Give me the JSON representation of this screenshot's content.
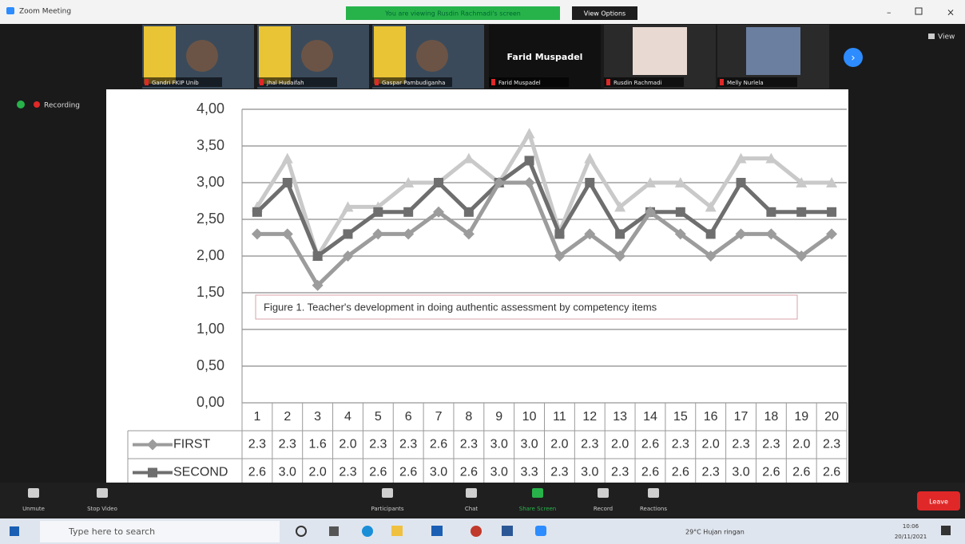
{
  "window": {
    "title": "Zoom Meeting",
    "banner": "You are viewing Rusdin Rachmadi's screen",
    "view_options": "View Options",
    "view": "View",
    "recording": "Recording"
  },
  "participants": [
    {
      "name": "Gandri FKIP Unib"
    },
    {
      "name": "Jhal Hudaifah"
    },
    {
      "name": "Gaspar Pambudiganha"
    },
    {
      "name": "Farid Muspadel"
    },
    {
      "name": "Rusdin Rachmadi"
    },
    {
      "name": "Melly Nurlela"
    }
  ],
  "featured_name": "Farid Muspadel",
  "chart_data": {
    "type": "line",
    "annotation": "Figure 1. Teacher's development in doing authentic assessment by competency items",
    "categories": [
      "1",
      "2",
      "3",
      "4",
      "5",
      "6",
      "7",
      "8",
      "9",
      "10",
      "11",
      "12",
      "13",
      "14",
      "15",
      "16",
      "17",
      "18",
      "19",
      "20"
    ],
    "series": [
      {
        "name": "FIRST",
        "color": "#9c9c9c",
        "marker": "diamond",
        "values": [
          2.3,
          2.3,
          1.6,
          2.0,
          2.3,
          2.3,
          2.6,
          2.3,
          3.0,
          3.0,
          2.0,
          2.3,
          2.0,
          2.6,
          2.3,
          2.0,
          2.3,
          2.3,
          2.0,
          2.3
        ],
        "value_labels": [
          "2.3",
          "2.3",
          "1.6",
          "2.0",
          "2.3",
          "2.3",
          "2.6",
          "2.3",
          "3.0",
          "3.0",
          "2.0",
          "2.3",
          "2.0",
          "2.6",
          "2.3",
          "2.0",
          "2.3",
          "2.3",
          "2.0",
          "2.3"
        ]
      },
      {
        "name": "SECOND",
        "color": "#6e6e6e",
        "marker": "square",
        "values": [
          2.6,
          3.0,
          2.0,
          2.3,
          2.6,
          2.6,
          3.0,
          2.6,
          3.0,
          3.3,
          2.3,
          3.0,
          2.3,
          2.6,
          2.6,
          2.3,
          3.0,
          2.6,
          2.6,
          2.6
        ],
        "value_labels": [
          "2.6",
          "3.0",
          "2.0",
          "2.3",
          "2.6",
          "2.6",
          "3.0",
          "2.6",
          "3.0",
          "3.3",
          "2.3",
          "3.0",
          "2.3",
          "2.6",
          "2.6",
          "2.3",
          "3.0",
          "2.6",
          "2.6",
          "2.6"
        ]
      },
      {
        "color": "#c9c9c9",
        "marker": "triangle",
        "values": [
          2.67,
          3.33,
          2.0,
          2.67,
          2.67,
          3.0,
          3.0,
          3.33,
          3.0,
          3.67,
          2.33,
          3.33,
          2.67,
          3.0,
          3.0,
          2.67,
          3.33,
          3.33,
          3.0,
          3.0
        ]
      }
    ],
    "ylim": [
      0,
      4
    ],
    "yticks": [
      {
        "value": 0,
        "label": "0,00"
      },
      {
        "value": 0.5,
        "label": "0,50"
      },
      {
        "value": 1,
        "label": "1,00"
      },
      {
        "value": 1.5,
        "label": "1,50"
      },
      {
        "value": 2,
        "label": "2,00"
      },
      {
        "value": 2.5,
        "label": "2,50"
      },
      {
        "value": 3,
        "label": "3,00"
      },
      {
        "value": 3.5,
        "label": "3,50"
      },
      {
        "value": 4,
        "label": "4,00"
      }
    ],
    "grid": true
  },
  "toolbar": [
    "Unmute",
    "Stop Video",
    "Participants",
    "Chat",
    "Share Screen",
    "Record",
    "Reactions"
  ],
  "leave": "Leave",
  "taskbar": {
    "search": "Type here to search",
    "weather": "29°C Hujan ringan",
    "time": "10:06",
    "date": "20/11/2021"
  }
}
